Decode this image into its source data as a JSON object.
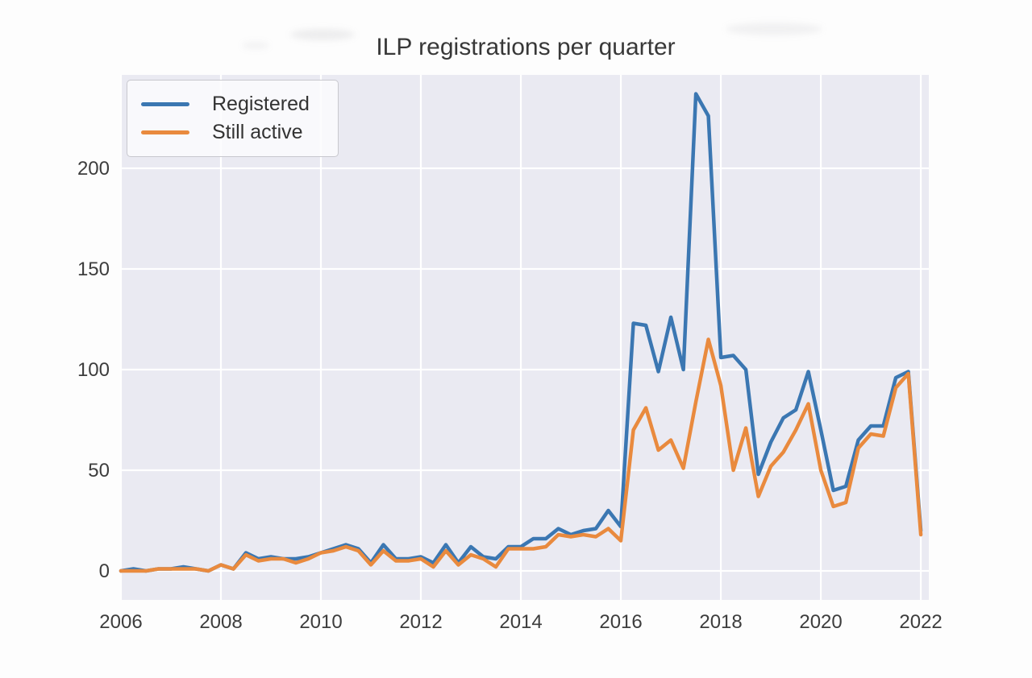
{
  "page": {
    "background": "#fdfdfd"
  },
  "header": {
    "title": "ILP registrations per quarter"
  },
  "legend": {
    "items": [
      {
        "label": "Registered",
        "color": "#3b77b2"
      },
      {
        "label": "Still active",
        "color": "#e98a3e"
      }
    ]
  },
  "chart_data": {
    "type": "line",
    "title": "ILP registrations per quarter",
    "xlabel": "",
    "ylabel": "",
    "x_start": 2006.0,
    "x_step": 0.25,
    "xlim": [
      2006.0,
      2022.16
    ],
    "ylim": [
      -14.4,
      246.4
    ],
    "x_ticks": [
      2006,
      2008,
      2010,
      2012,
      2014,
      2016,
      2018,
      2020,
      2022
    ],
    "y_ticks": [
      0,
      50,
      100,
      150,
      200
    ],
    "grid": true,
    "legend_position": "upper-left",
    "plot_background": "#eaeaf2",
    "grid_color": "#ffffff",
    "tick_color": "#3d3d3d",
    "series": [
      {
        "name": "Registered",
        "color": "#3b77b2",
        "values": [
          0,
          1,
          0,
          1,
          1,
          2,
          1,
          0,
          3,
          1,
          9,
          6,
          7,
          6,
          6,
          7,
          9,
          11,
          13,
          11,
          4,
          13,
          6,
          6,
          7,
          4,
          13,
          4,
          12,
          7,
          6,
          12,
          12,
          16,
          16,
          21,
          18,
          20,
          21,
          30,
          22,
          123,
          122,
          99,
          126,
          100,
          237,
          226,
          106,
          107,
          100,
          48,
          64,
          76,
          80,
          99,
          70,
          40,
          42,
          65,
          72,
          72,
          96,
          99,
          20
        ]
      },
      {
        "name": "Still active",
        "color": "#e98a3e",
        "values": [
          0,
          0,
          0,
          1,
          1,
          1,
          1,
          0,
          3,
          1,
          8,
          5,
          6,
          6,
          4,
          6,
          9,
          10,
          12,
          10,
          3,
          10,
          5,
          5,
          6,
          2,
          10,
          3,
          8,
          6,
          2,
          11,
          11,
          11,
          12,
          18,
          17,
          18,
          17,
          21,
          15,
          70,
          81,
          60,
          65,
          51,
          84,
          115,
          92,
          50,
          71,
          37,
          52,
          59,
          70,
          83,
          50,
          32,
          34,
          61,
          68,
          67,
          91,
          98,
          18
        ]
      }
    ]
  }
}
